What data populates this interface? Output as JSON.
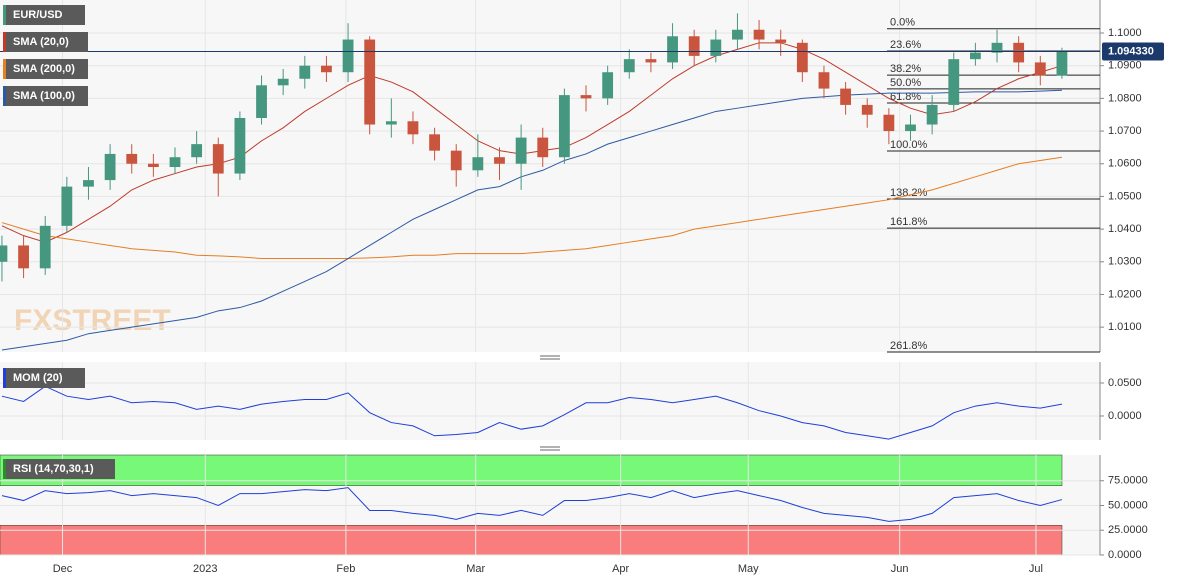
{
  "chart_data": [
    {
      "type": "candlestick",
      "title": "EUR/USD",
      "watermark": "FXSTREET",
      "open": [
        1.03,
        1.035,
        1.028,
        1.041,
        1.053,
        1.055,
        1.063,
        1.06,
        1.059,
        1.062,
        1.066,
        1.057,
        1.074,
        1.084,
        1.086,
        1.09,
        1.088,
        1.098,
        1.072,
        1.073,
        1.069,
        1.064,
        1.058,
        1.062,
        1.06,
        1.068,
        1.062,
        1.081,
        1.08,
        1.088,
        1.092,
        1.091,
        1.099,
        1.093,
        1.098,
        1.101,
        1.098,
        1.097,
        1.088,
        1.083,
        1.078,
        1.075,
        1.07,
        1.072,
        1.078,
        1.092,
        1.094,
        1.097,
        1.091,
        1.087
      ],
      "high": [
        1.038,
        1.038,
        1.044,
        1.056,
        1.059,
        1.066,
        1.066,
        1.063,
        1.065,
        1.07,
        1.068,
        1.076,
        1.087,
        1.089,
        1.093,
        1.093,
        1.103,
        1.099,
        1.08,
        1.076,
        1.071,
        1.066,
        1.069,
        1.065,
        1.072,
        1.071,
        1.083,
        1.084,
        1.09,
        1.095,
        1.094,
        1.103,
        1.101,
        1.101,
        1.106,
        1.104,
        1.101,
        1.098,
        1.09,
        1.085,
        1.08,
        1.077,
        1.075,
        1.081,
        1.094,
        1.097,
        1.101,
        1.099,
        1.093,
        1.0955
      ],
      "low": [
        1.024,
        1.025,
        1.026,
        1.039,
        1.049,
        1.052,
        1.057,
        1.056,
        1.057,
        1.06,
        1.05,
        1.055,
        1.072,
        1.081,
        1.083,
        1.085,
        1.085,
        1.069,
        1.068,
        1.066,
        1.061,
        1.053,
        1.056,
        1.055,
        1.052,
        1.059,
        1.06,
        1.076,
        1.078,
        1.086,
        1.088,
        1.089,
        1.09,
        1.091,
        1.095,
        1.095,
        1.093,
        1.085,
        1.08,
        1.075,
        1.071,
        1.066,
        1.067,
        1.069,
        1.076,
        1.09,
        1.091,
        1.088,
        1.084,
        1.086
      ],
      "close": [
        1.035,
        1.028,
        1.041,
        1.053,
        1.055,
        1.063,
        1.06,
        1.059,
        1.062,
        1.066,
        1.057,
        1.074,
        1.084,
        1.086,
        1.09,
        1.088,
        1.098,
        1.072,
        1.073,
        1.069,
        1.064,
        1.058,
        1.062,
        1.06,
        1.068,
        1.062,
        1.081,
        1.08,
        1.088,
        1.092,
        1.091,
        1.099,
        1.093,
        1.098,
        1.101,
        1.098,
        1.097,
        1.088,
        1.083,
        1.078,
        1.075,
        1.07,
        1.072,
        1.078,
        1.092,
        1.094,
        1.097,
        1.091,
        1.087,
        1.0943
      ],
      "up_color": "#46977f",
      "down_color": "#c9553f",
      "series": [
        {
          "name": "SMA (20,0)",
          "color": "#c0392b",
          "values": [
            1.041,
            1.038,
            1.036,
            1.039,
            1.043,
            1.047,
            1.052,
            1.055,
            1.057,
            1.059,
            1.06,
            1.062,
            1.067,
            1.071,
            1.076,
            1.08,
            1.084,
            1.087,
            1.085,
            1.082,
            1.077,
            1.072,
            1.067,
            1.064,
            1.063,
            1.064,
            1.065,
            1.068,
            1.072,
            1.076,
            1.081,
            1.086,
            1.09,
            1.093,
            1.095,
            1.097,
            1.097,
            1.095,
            1.092,
            1.088,
            1.084,
            1.08,
            1.077,
            1.075,
            1.076,
            1.079,
            1.083,
            1.086,
            1.088,
            1.09
          ]
        },
        {
          "name": "SMA (200,0)",
          "color": "#e67e22",
          "values": [
            1.042,
            1.04,
            1.038,
            1.037,
            1.036,
            1.035,
            1.034,
            1.0335,
            1.033,
            1.032,
            1.0318,
            1.0315,
            1.031,
            1.031,
            1.031,
            1.031,
            1.031,
            1.0312,
            1.0315,
            1.032,
            1.032,
            1.0325,
            1.0325,
            1.0325,
            1.0325,
            1.033,
            1.0335,
            1.034,
            1.035,
            1.036,
            1.037,
            1.038,
            1.04,
            1.041,
            1.042,
            1.043,
            1.044,
            1.045,
            1.046,
            1.047,
            1.048,
            1.049,
            1.0505,
            1.052,
            1.054,
            1.056,
            1.058,
            1.06,
            1.061,
            1.062
          ]
        },
        {
          "name": "SMA (100,0)",
          "color": "#2c5aa0",
          "values": [
            1.003,
            1.004,
            1.005,
            1.006,
            1.008,
            1.009,
            1.01,
            1.011,
            1.012,
            1.013,
            1.015,
            1.016,
            1.018,
            1.021,
            1.024,
            1.027,
            1.031,
            1.035,
            1.039,
            1.043,
            1.046,
            1.049,
            1.052,
            1.053,
            1.056,
            1.058,
            1.061,
            1.063,
            1.066,
            1.068,
            1.07,
            1.072,
            1.074,
            1.076,
            1.077,
            1.078,
            1.079,
            1.08,
            1.0805,
            1.081,
            1.0813,
            1.0816,
            1.0816,
            1.0816,
            1.0818,
            1.082,
            1.082,
            1.082,
            1.0822,
            1.0825
          ]
        }
      ],
      "fibonacci": [
        {
          "value": 1.1013,
          "label": "0.0%"
        },
        {
          "value": 1.0945,
          "label": "23.6%"
        },
        {
          "value": 1.0871,
          "label": "38.2%"
        },
        {
          "value": 1.0829,
          "label": "50.0%"
        },
        {
          "value": 1.0786,
          "label": "61.8%"
        },
        {
          "value": 1.0639,
          "label": "100.0%"
        },
        {
          "value": 1.0492,
          "label": "138.2%"
        },
        {
          "value": 1.0403,
          "label": "161.8%"
        },
        {
          "value": 1.0024,
          "label": "261.8%"
        }
      ],
      "last_price": {
        "value": 1.09433,
        "label": "1.094330"
      },
      "xlim": [
        -0.09,
        50.76
      ],
      "xticks": [
        {
          "value": 2.8,
          "label": "Dec"
        },
        {
          "value": 9.4,
          "label": "2023"
        },
        {
          "value": 15.9,
          "label": "Feb"
        },
        {
          "value": 21.9,
          "label": "Mar"
        },
        {
          "value": 28.6,
          "label": "Apr"
        },
        {
          "value": 34.5,
          "label": "May"
        },
        {
          "value": 41.5,
          "label": "Jun"
        },
        {
          "value": 47.8,
          "label": "Jul"
        }
      ],
      "ylim": [
        1.0024,
        1.1101
      ],
      "yticks": [
        {
          "value": 1.01,
          "label": "1.0100"
        },
        {
          "value": 1.02,
          "label": "1.0200"
        },
        {
          "value": 1.03,
          "label": "1.0300"
        },
        {
          "value": 1.04,
          "label": "1.0400"
        },
        {
          "value": 1.05,
          "label": "1.0500"
        },
        {
          "value": 1.06,
          "label": "1.0600"
        },
        {
          "value": 1.07,
          "label": "1.0700"
        },
        {
          "value": 1.08,
          "label": "1.0800"
        },
        {
          "value": 1.09,
          "label": "1.0900"
        },
        {
          "value": 1.1,
          "label": "1.1000"
        }
      ]
    },
    {
      "type": "line",
      "series": [
        {
          "name": "MOM (20)",
          "color": "#1f3fd6",
          "values": [
            0.03,
            0.022,
            0.045,
            0.03,
            0.025,
            0.03,
            0.02,
            0.022,
            0.02,
            0.01,
            0.015,
            0.01,
            0.018,
            0.022,
            0.025,
            0.025,
            0.035,
            0.005,
            -0.01,
            -0.015,
            -0.03,
            -0.028,
            -0.025,
            -0.01,
            -0.02,
            -0.015,
            0.002,
            0.02,
            0.02,
            0.028,
            0.025,
            0.02,
            0.025,
            0.03,
            0.02,
            0.008,
            0.0,
            -0.01,
            -0.015,
            -0.025,
            -0.03,
            -0.035,
            -0.025,
            -0.015,
            0.005,
            0.015,
            0.02,
            0.015,
            0.012,
            0.018
          ]
        }
      ],
      "ylim": [
        -0.0364,
        0.0818
      ],
      "yticks": [
        {
          "value": 0,
          "label": "0.0000"
        },
        {
          "value": 0.05,
          "label": "0.0500"
        }
      ]
    },
    {
      "type": "line",
      "series": [
        {
          "name": "RSI (14,70,30,1)",
          "color": "#1f3fd6",
          "values": [
            60,
            55,
            65,
            62,
            63,
            65,
            60,
            62,
            60,
            58,
            50,
            62,
            62,
            64,
            66,
            65,
            68,
            45,
            45,
            42,
            40,
            36,
            42,
            40,
            45,
            40,
            55,
            55,
            58,
            62,
            58,
            65,
            58,
            62,
            65,
            60,
            55,
            48,
            42,
            40,
            38,
            34,
            36,
            42,
            58,
            60,
            62,
            55,
            50,
            56
          ]
        }
      ],
      "bands": [
        {
          "from": 70,
          "to": 101,
          "color": "#78f878"
        },
        {
          "from": 0,
          "to": 30,
          "color": "#fa7d7d"
        }
      ],
      "ylim": [
        0,
        101
      ],
      "yticks": [
        {
          "value": 0,
          "label": "0.0000"
        },
        {
          "value": 25,
          "label": "25.0000"
        },
        {
          "value": 50,
          "label": "50.0000"
        },
        {
          "value": 75,
          "label": "75.0000"
        }
      ]
    }
  ]
}
